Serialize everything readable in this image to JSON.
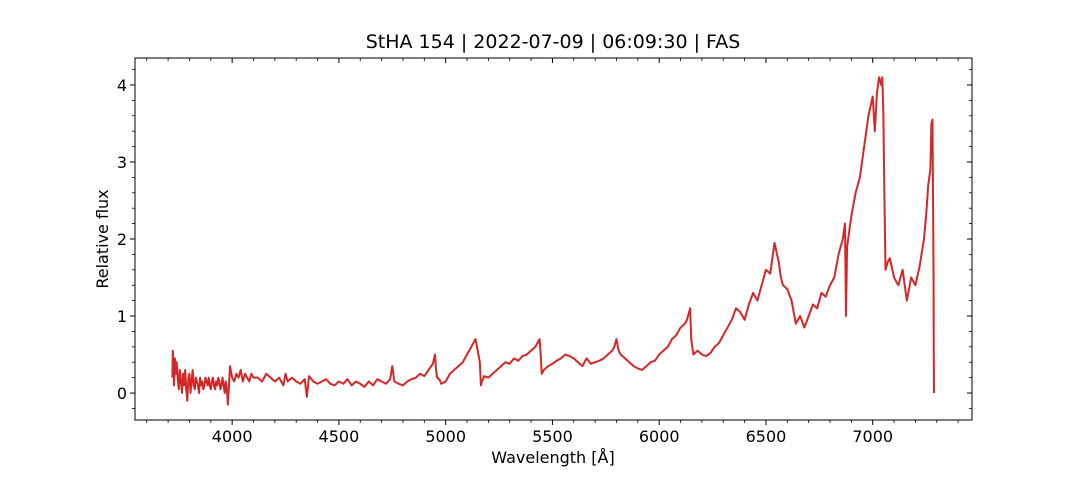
{
  "chart_data": {
    "type": "line",
    "title": "StHA 154 | 2022-07-09 | 06:09:30 | FAS",
    "xlabel": "Wavelength [Å]",
    "ylabel": "Relative flux",
    "xlim": [
      3545,
      7465
    ],
    "ylim": [
      -0.35,
      4.35
    ],
    "xticks": [
      4000,
      4500,
      5000,
      5500,
      6000,
      6500,
      7000
    ],
    "yticks": [
      0,
      1,
      2,
      3,
      4
    ],
    "xminor_step": 100,
    "yminor_step": 0.2,
    "grid": false,
    "series": [
      {
        "color": "#d62728",
        "x": [
          3720,
          3722,
          3725,
          3728,
          3732,
          3736,
          3740,
          3745,
          3750,
          3755,
          3760,
          3765,
          3770,
          3775,
          3780,
          3785,
          3790,
          3795,
          3800,
          3805,
          3810,
          3815,
          3820,
          3825,
          3830,
          3835,
          3840,
          3845,
          3850,
          3855,
          3860,
          3865,
          3870,
          3875,
          3880,
          3885,
          3890,
          3895,
          3900,
          3905,
          3910,
          3915,
          3920,
          3925,
          3930,
          3935,
          3940,
          3945,
          3950,
          3955,
          3960,
          3965,
          3970,
          3975,
          3980,
          3985,
          3990,
          4000,
          4010,
          4020,
          4030,
          4040,
          4050,
          4060,
          4070,
          4080,
          4090,
          4100,
          4120,
          4140,
          4160,
          4180,
          4200,
          4220,
          4240,
          4250,
          4260,
          4280,
          4300,
          4320,
          4340,
          4350,
          4360,
          4380,
          4400,
          4420,
          4440,
          4460,
          4480,
          4500,
          4520,
          4540,
          4560,
          4580,
          4600,
          4620,
          4640,
          4660,
          4680,
          4700,
          4720,
          4740,
          4750,
          4760,
          4780,
          4800,
          4820,
          4840,
          4860,
          4880,
          4900,
          4920,
          4940,
          4950,
          4955,
          4960,
          4970,
          4980,
          5000,
          5020,
          5040,
          5060,
          5080,
          5100,
          5120,
          5140,
          5160,
          5165,
          5170,
          5175,
          5180,
          5200,
          5220,
          5240,
          5260,
          5280,
          5300,
          5320,
          5340,
          5360,
          5380,
          5400,
          5420,
          5440,
          5445,
          5450,
          5460,
          5480,
          5500,
          5520,
          5540,
          5560,
          5580,
          5600,
          5620,
          5640,
          5660,
          5680,
          5700,
          5720,
          5740,
          5760,
          5780,
          5790,
          5800,
          5810,
          5820,
          5840,
          5860,
          5880,
          5900,
          5920,
          5940,
          5960,
          5980,
          6000,
          6020,
          6040,
          6060,
          6080,
          6100,
          6120,
          6130,
          6140,
          6145,
          6150,
          6160,
          6180,
          6200,
          6220,
          6240,
          6260,
          6280,
          6300,
          6320,
          6340,
          6360,
          6380,
          6400,
          6420,
          6440,
          6460,
          6480,
          6500,
          6520,
          6530,
          6540,
          6560,
          6570,
          6580,
          6600,
          6620,
          6640,
          6660,
          6680,
          6700,
          6720,
          6740,
          6760,
          6780,
          6800,
          6820,
          6840,
          6860,
          6870,
          6875,
          6880,
          6900,
          6920,
          6940,
          6960,
          6980,
          7000,
          7010,
          7020,
          7030,
          7040,
          7045,
          7050,
          7055,
          7060,
          7070,
          7080,
          7100,
          7120,
          7140,
          7160,
          7180,
          7200,
          7220,
          7240,
          7250,
          7260,
          7270,
          7275,
          7280,
          7285,
          7286,
          7287
        ],
        "y": [
          0.2,
          0.55,
          0.35,
          0.1,
          0.45,
          0.25,
          0.4,
          0.2,
          0.05,
          0.3,
          0.15,
          0.0,
          0.25,
          0.1,
          0.3,
          0.05,
          -0.1,
          0.2,
          0.25,
          0.0,
          0.15,
          0.3,
          0.1,
          0.05,
          0.2,
          0.15,
          0.1,
          0.0,
          0.2,
          0.1,
          0.15,
          0.05,
          0.1,
          0.2,
          0.15,
          0.1,
          0.2,
          0.1,
          0.05,
          0.15,
          0.2,
          0.1,
          0.05,
          0.15,
          0.1,
          0.2,
          0.15,
          0.05,
          0.1,
          0.2,
          0.1,
          0.0,
          0.15,
          0.05,
          -0.15,
          0.1,
          0.35,
          0.2,
          0.15,
          0.25,
          0.2,
          0.3,
          0.15,
          0.25,
          0.2,
          0.15,
          0.25,
          0.2,
          0.2,
          0.15,
          0.25,
          0.2,
          0.15,
          0.2,
          0.1,
          0.25,
          0.15,
          0.2,
          0.15,
          0.12,
          0.18,
          -0.05,
          0.22,
          0.15,
          0.12,
          0.15,
          0.18,
          0.12,
          0.1,
          0.15,
          0.12,
          0.18,
          0.1,
          0.15,
          0.12,
          0.08,
          0.15,
          0.1,
          0.18,
          0.15,
          0.12,
          0.18,
          0.35,
          0.15,
          0.12,
          0.1,
          0.15,
          0.18,
          0.2,
          0.25,
          0.22,
          0.3,
          0.38,
          0.5,
          0.3,
          0.2,
          0.18,
          0.12,
          0.15,
          0.25,
          0.3,
          0.35,
          0.4,
          0.5,
          0.6,
          0.7,
          0.4,
          0.1,
          0.15,
          0.18,
          0.22,
          0.2,
          0.25,
          0.3,
          0.35,
          0.4,
          0.38,
          0.45,
          0.42,
          0.48,
          0.5,
          0.55,
          0.6,
          0.7,
          0.5,
          0.25,
          0.3,
          0.35,
          0.38,
          0.42,
          0.45,
          0.5,
          0.48,
          0.45,
          0.4,
          0.35,
          0.45,
          0.38,
          0.4,
          0.42,
          0.45,
          0.5,
          0.55,
          0.6,
          0.7,
          0.55,
          0.5,
          0.45,
          0.4,
          0.35,
          0.32,
          0.3,
          0.35,
          0.4,
          0.42,
          0.5,
          0.55,
          0.6,
          0.7,
          0.75,
          0.85,
          0.9,
          0.95,
          1.05,
          1.1,
          0.7,
          0.5,
          0.55,
          0.5,
          0.48,
          0.52,
          0.6,
          0.65,
          0.75,
          0.85,
          0.95,
          1.1,
          1.05,
          0.95,
          1.15,
          1.3,
          1.2,
          1.4,
          1.6,
          1.55,
          1.75,
          1.95,
          1.7,
          1.5,
          1.4,
          1.35,
          1.2,
          0.9,
          1.0,
          0.85,
          1.0,
          1.15,
          1.1,
          1.3,
          1.25,
          1.4,
          1.5,
          1.8,
          2.0,
          2.2,
          1.0,
          1.9,
          2.3,
          2.6,
          2.8,
          3.2,
          3.6,
          3.85,
          3.4,
          3.9,
          4.1,
          4.0,
          4.1,
          3.6,
          2.5,
          1.6,
          1.7,
          1.75,
          1.5,
          1.4,
          1.6,
          1.2,
          1.5,
          1.4,
          1.65,
          2.0,
          2.3,
          2.7,
          2.9,
          3.5,
          3.55,
          1.5,
          0.5,
          0.0
        ]
      }
    ]
  }
}
